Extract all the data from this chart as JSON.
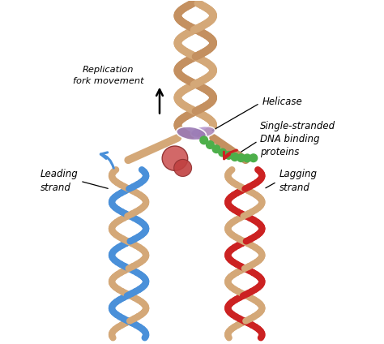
{
  "bg_color": "#ffffff",
  "dna_color": "#D4A878",
  "dna_color_dark": "#C49060",
  "blue_strand": "#4A90D9",
  "blue_strand_light": "#7BBAE8",
  "red_strand": "#CC2222",
  "red_strand_light": "#E88888",
  "green_protein": "#4DAF4A",
  "helicase_color": "#9B7BB5",
  "helicase_color2": "#B090CC",
  "polymerase_color": "#C04040",
  "polymerase_color2": "#D06060",
  "label_replication": "Replication\nfork movement",
  "label_helicase": "Helicase",
  "label_ssbp": "Single-stranded\nDNA binding\nproteins",
  "label_leading": "Leading\nstrand",
  "label_lagging": "Lagging\nstrand",
  "figsize": [
    4.74,
    4.24
  ],
  "dpi": 100
}
